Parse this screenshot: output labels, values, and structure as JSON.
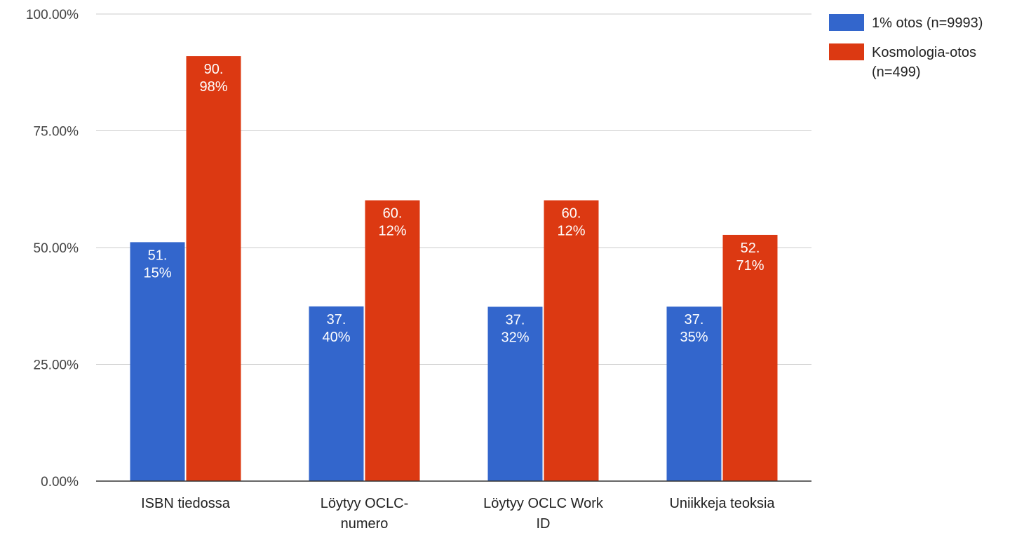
{
  "chart_data": {
    "type": "bar",
    "categories": [
      "ISBN tiedossa",
      "Löytyy OCLC-numero",
      "Löytyy OCLC Work ID",
      "Uniikkeja teoksia"
    ],
    "category_lines": [
      [
        "ISBN tiedossa"
      ],
      [
        "Löytyy OCLC-",
        "numero"
      ],
      [
        "Löytyy OCLC Work",
        "ID"
      ],
      [
        "Uniikkeja teoksia"
      ]
    ],
    "series": [
      {
        "name": "1% otos (n=9993)",
        "name_lines": [
          "1% otos (n=9993)"
        ],
        "color": "#3366cc",
        "values": [
          51.15,
          37.4,
          37.32,
          37.35
        ],
        "labels": [
          [
            "51.",
            "15%"
          ],
          [
            "37.",
            "40%"
          ],
          [
            "37.",
            "32%"
          ],
          [
            "37.",
            "35%"
          ]
        ]
      },
      {
        "name": "Kosmologia-otos (n=499)",
        "name_lines": [
          "Kosmologia-otos",
          "(n=499)"
        ],
        "color": "#dc3912",
        "values": [
          90.98,
          60.12,
          60.12,
          52.71
        ],
        "labels": [
          [
            "90.",
            "98%"
          ],
          [
            "60.",
            "12%"
          ],
          [
            "60.",
            "12%"
          ],
          [
            "52.",
            "71%"
          ]
        ]
      }
    ],
    "y_ticks": [
      0,
      25,
      50,
      75,
      100
    ],
    "y_tick_labels": [
      "0.00%",
      "25.00%",
      "50.00%",
      "75.00%",
      "100.00%"
    ],
    "ylim": [
      0,
      100
    ],
    "grid": true,
    "legend_position": "right"
  }
}
